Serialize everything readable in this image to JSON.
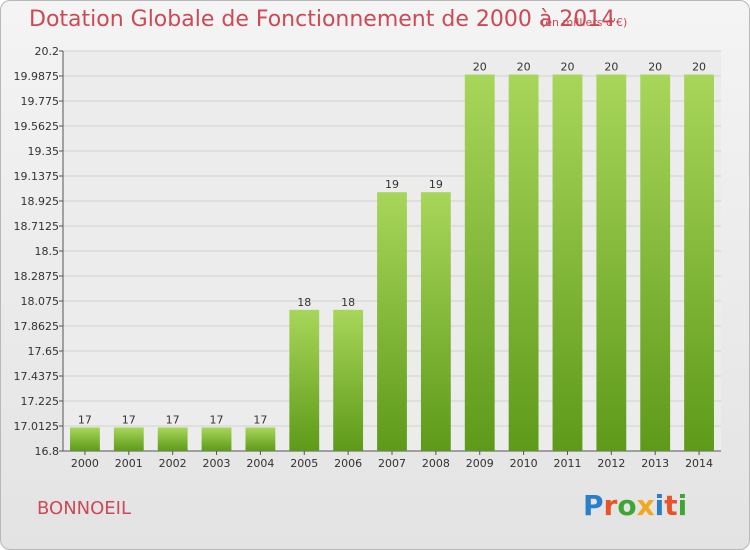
{
  "header": {
    "title": "Dotation Globale de Fonctionnement de 2000 à 2014",
    "unit": "(en milliers d'€)"
  },
  "footer": {
    "town": "BONNOEIL",
    "logo_letters": [
      "P",
      "r",
      "o",
      "x",
      "i",
      "t",
      "i"
    ],
    "logo_colors": [
      "#2a7fc9",
      "#e8542a",
      "#3fa535",
      "#f0a81e",
      "#2a7fc9",
      "#e8542a",
      "#3fa535"
    ]
  },
  "colors": {
    "bar_light": "#a8d65a",
    "bar_dark": "#5e9a1a",
    "title": "#cc4a56"
  },
  "chart_data": {
    "type": "bar",
    "categories": [
      "2000",
      "2001",
      "2002",
      "2003",
      "2004",
      "2005",
      "2006",
      "2007",
      "2008",
      "2009",
      "2010",
      "2011",
      "2012",
      "2013",
      "2014"
    ],
    "values": [
      17,
      17,
      17,
      17,
      17,
      18,
      18,
      19,
      19,
      20,
      20,
      20,
      20,
      20,
      20
    ],
    "data_labels": [
      "17",
      "17",
      "17",
      "17",
      "17",
      "18",
      "18",
      "19",
      "19",
      "20",
      "20",
      "20",
      "20",
      "20",
      "20"
    ],
    "y_ticks": [
      "16.8",
      "17.0125",
      "17.225",
      "17.4375",
      "17.65",
      "17.8625",
      "18.075",
      "18.2875",
      "18.5",
      "18.7125",
      "18.925",
      "19.1375",
      "19.35",
      "19.5625",
      "19.775",
      "19.9875",
      "20.2"
    ],
    "ylim": [
      16.8,
      20.2
    ],
    "grid": true
  }
}
